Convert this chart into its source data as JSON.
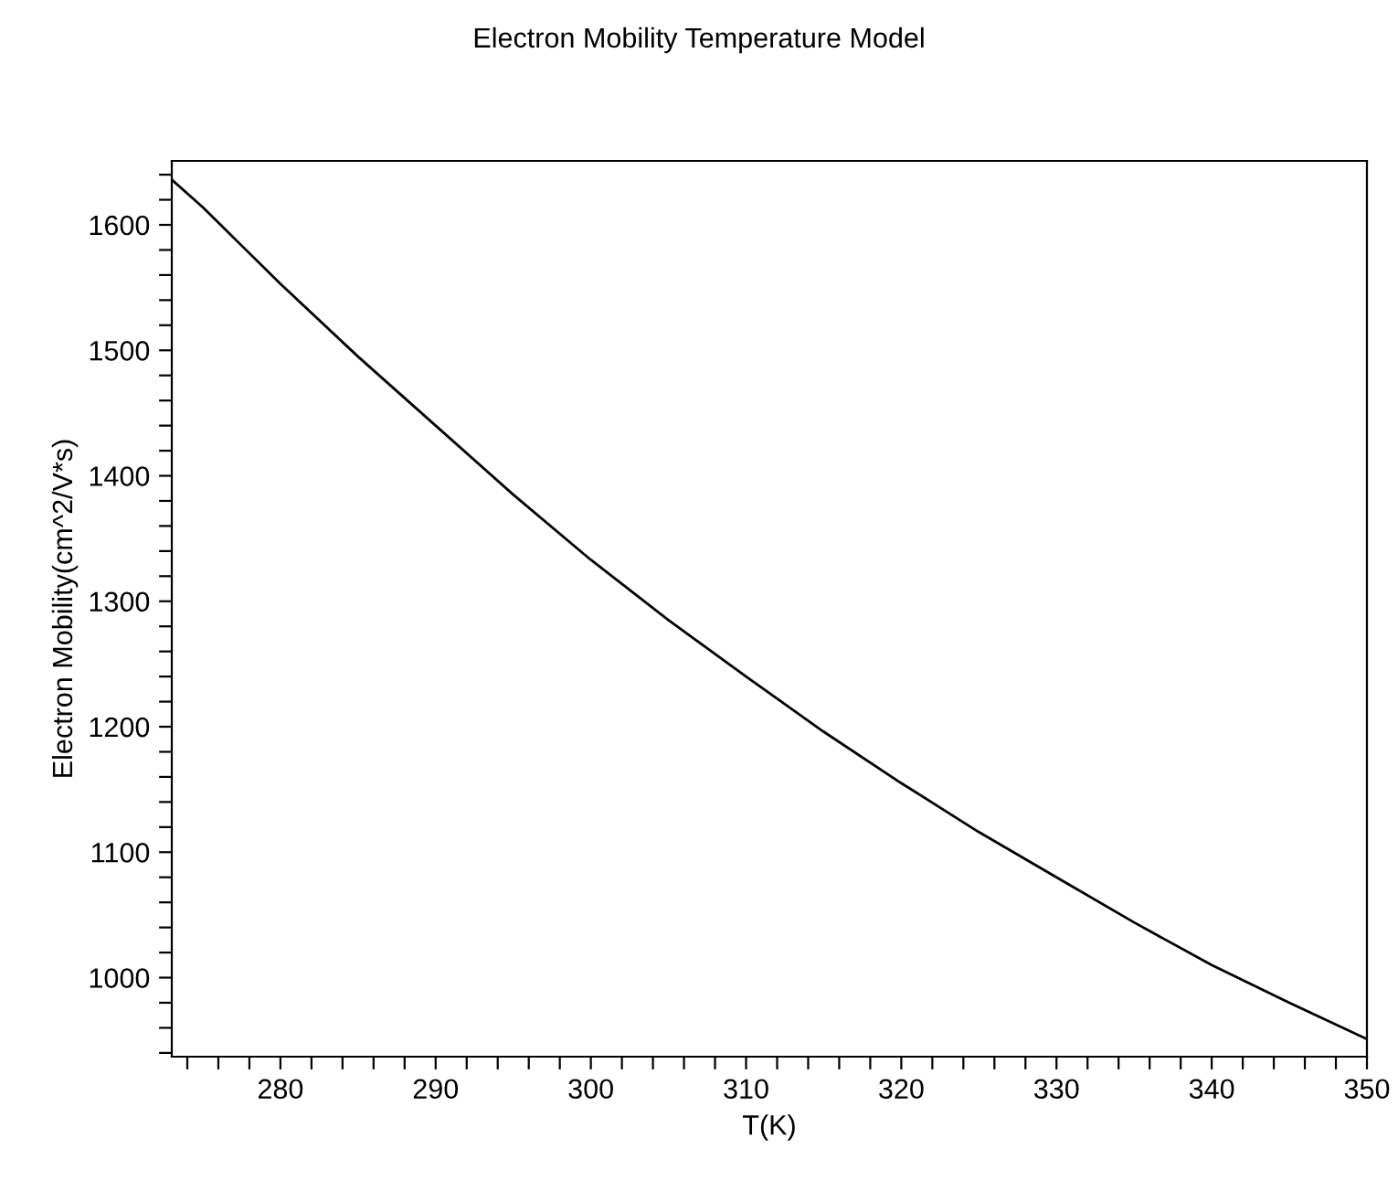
{
  "chart_data": {
    "type": "line",
    "title": "Electron Mobility Temperature Model",
    "xlabel": "T(K)",
    "ylabel": "Electron Mobility(cm^2/V*s)",
    "x": [
      273,
      275,
      280,
      285,
      290,
      295,
      300,
      305,
      310,
      315,
      320,
      325,
      330,
      335,
      340,
      345,
      350
    ],
    "series": [
      {
        "color": "#000000",
        "values": [
          1636,
          1614,
          1553,
          1495,
          1440,
          1385,
          1333,
          1285,
          1240,
          1196,
          1155,
          1116,
          1080,
          1044,
          1010,
          980,
          951
        ]
      }
    ],
    "xlim": [
      273,
      350
    ],
    "ylim": [
      937,
      1651
    ],
    "xticks": [
      {
        "value": 274,
        "label": null
      },
      {
        "value": 276,
        "label": null
      },
      {
        "value": 278,
        "label": null
      },
      280,
      {
        "value": 282,
        "label": null
      },
      {
        "value": 284,
        "label": null
      },
      {
        "value": 286,
        "label": null
      },
      {
        "value": 288,
        "label": null
      },
      290,
      {
        "value": 292,
        "label": null
      },
      {
        "value": 294,
        "label": null
      },
      {
        "value": 296,
        "label": null
      },
      {
        "value": 298,
        "label": null
      },
      300,
      {
        "value": 302,
        "label": null
      },
      {
        "value": 304,
        "label": null
      },
      {
        "value": 306,
        "label": null
      },
      {
        "value": 308,
        "label": null
      },
      310,
      {
        "value": 312,
        "label": null
      },
      {
        "value": 314,
        "label": null
      },
      {
        "value": 316,
        "label": null
      },
      {
        "value": 318,
        "label": null
      },
      320,
      {
        "value": 322,
        "label": null
      },
      {
        "value": 324,
        "label": null
      },
      {
        "value": 326,
        "label": null
      },
      {
        "value": 328,
        "label": null
      },
      330,
      {
        "value": 332,
        "label": null
      },
      {
        "value": 334,
        "label": null
      },
      {
        "value": 336,
        "label": null
      },
      {
        "value": 338,
        "label": null
      },
      340,
      {
        "value": 342,
        "label": null
      },
      {
        "value": 344,
        "label": null
      },
      {
        "value": 346,
        "label": null
      },
      {
        "value": 348,
        "label": null
      },
      350
    ],
    "yticks": [
      {
        "value": 940,
        "label": null
      },
      {
        "value": 960,
        "label": null
      },
      {
        "value": 980,
        "label": null
      },
      1000,
      {
        "value": 1020,
        "label": null
      },
      {
        "value": 1040,
        "label": null
      },
      {
        "value": 1060,
        "label": null
      },
      {
        "value": 1080,
        "label": null
      },
      1100,
      {
        "value": 1120,
        "label": null
      },
      {
        "value": 1140,
        "label": null
      },
      {
        "value": 1160,
        "label": null
      },
      {
        "value": 1180,
        "label": null
      },
      1200,
      {
        "value": 1220,
        "label": null
      },
      {
        "value": 1240,
        "label": null
      },
      {
        "value": 1260,
        "label": null
      },
      {
        "value": 1280,
        "label": null
      },
      1300,
      {
        "value": 1320,
        "label": null
      },
      {
        "value": 1340,
        "label": null
      },
      {
        "value": 1360,
        "label": null
      },
      {
        "value": 1380,
        "label": null
      },
      1400,
      {
        "value": 1420,
        "label": null
      },
      {
        "value": 1440,
        "label": null
      },
      {
        "value": 1460,
        "label": null
      },
      {
        "value": 1480,
        "label": null
      },
      1500,
      {
        "value": 1520,
        "label": null
      },
      {
        "value": 1540,
        "label": null
      },
      {
        "value": 1560,
        "label": null
      },
      {
        "value": 1580,
        "label": null
      },
      1600,
      {
        "value": 1620,
        "label": null
      },
      {
        "value": 1640,
        "label": null
      }
    ],
    "grid": false,
    "legend": false
  }
}
